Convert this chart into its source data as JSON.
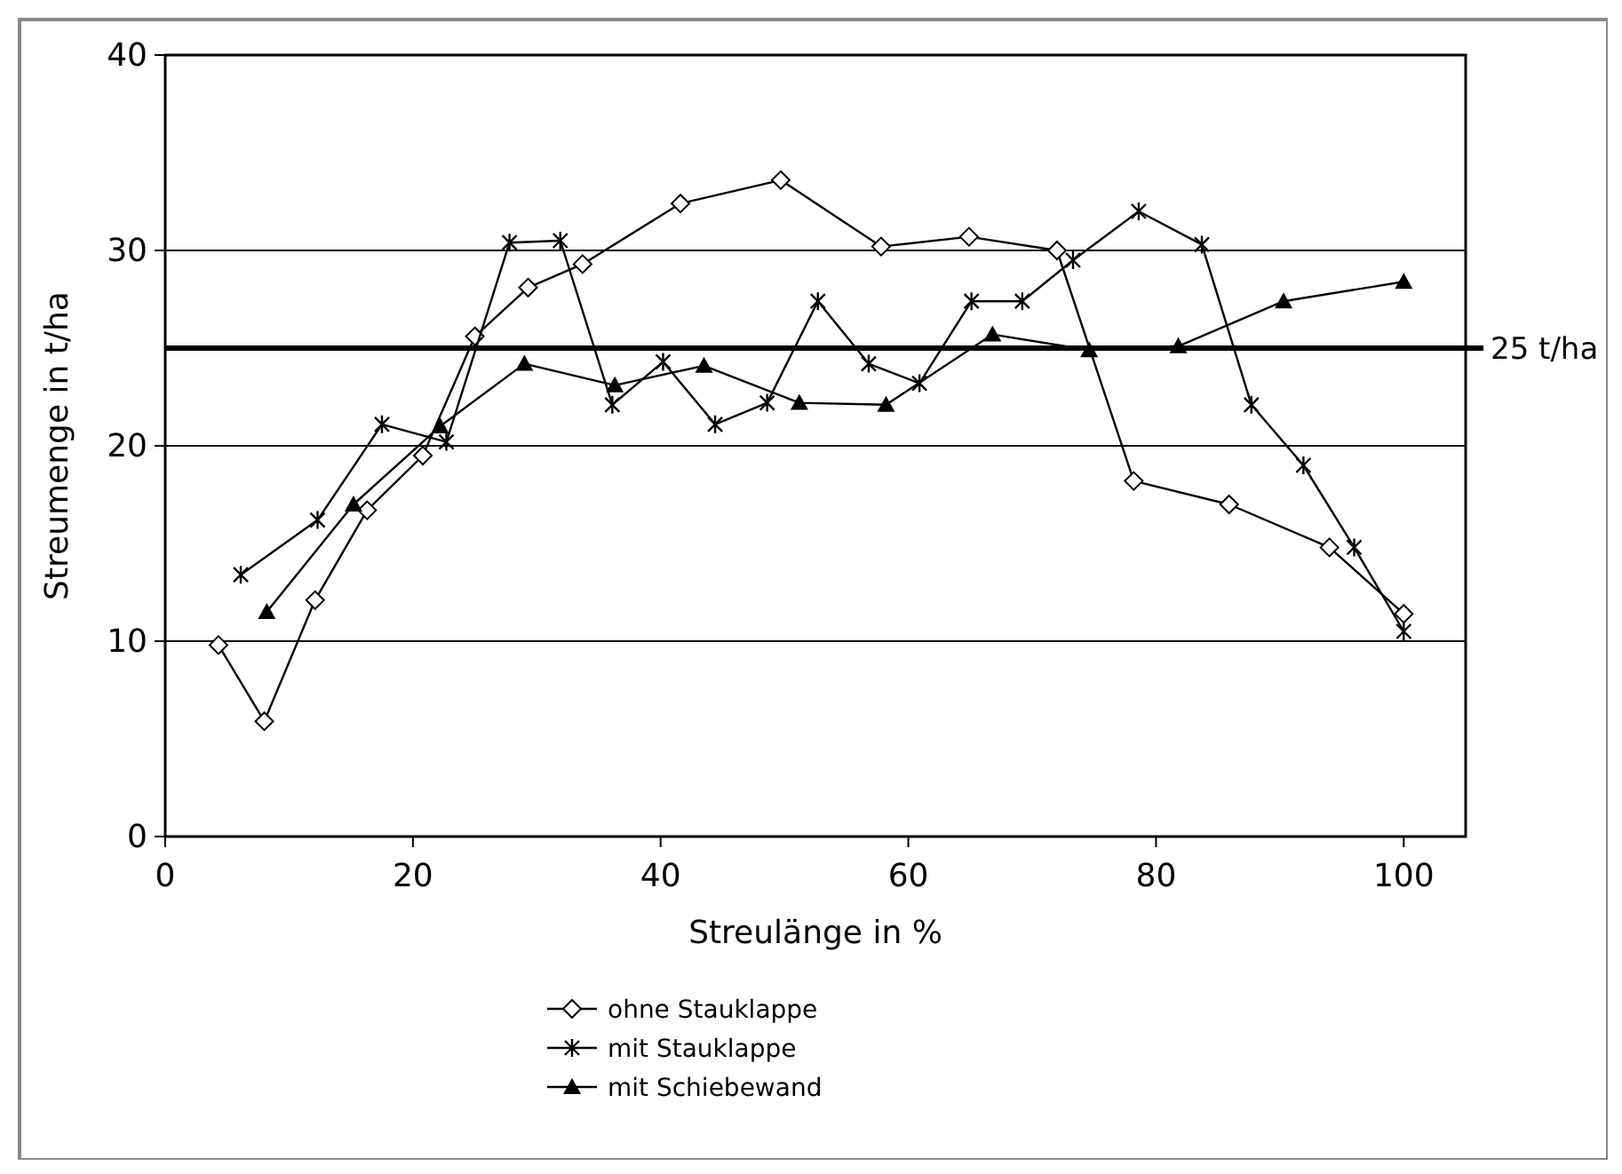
{
  "chart_data": {
    "type": "line",
    "xlabel": "Streulänge in %",
    "ylabel": "Streumenge in t/ha",
    "xlim": [
      0,
      105
    ],
    "xticks": [
      0,
      20,
      40,
      60,
      80,
      100
    ],
    "ylim": [
      0,
      40
    ],
    "yticks": [
      0,
      10,
      20,
      30,
      40
    ],
    "grid": "y",
    "legend": "bottom",
    "ref_lines": [
      {
        "axis": "y",
        "value": 25,
        "label": "25 t/ha"
      }
    ],
    "series": [
      {
        "name": "ohne Stauklappe",
        "color": "#000000",
        "marker": "diamond",
        "x": [
          4.3,
          8.0,
          12.1,
          16.3,
          20.8,
          25.0,
          29.3,
          33.7,
          41.6,
          49.7,
          57.8,
          64.9,
          72.0,
          78.2,
          85.9,
          94.0,
          100
        ],
        "values": [
          9.8,
          5.9,
          12.1,
          16.7,
          19.5,
          25.6,
          28.1,
          29.3,
          32.4,
          33.6,
          30.2,
          30.7,
          30.0,
          18.2,
          17.0,
          14.8,
          11.4
        ]
      },
      {
        "name": "mit Stauklappe",
        "color": "#000000",
        "marker": "cross",
        "x": [
          6.1,
          12.3,
          17.5,
          22.7,
          27.8,
          31.9,
          36.1,
          40.2,
          44.4,
          48.6,
          52.7,
          56.8,
          60.9,
          65.1,
          69.2,
          73.3,
          78.6,
          83.7,
          87.7,
          91.9,
          96.0,
          100
        ],
        "values": [
          13.4,
          16.2,
          21.1,
          20.2,
          30.4,
          30.5,
          22.1,
          24.3,
          21.1,
          22.2,
          27.4,
          24.2,
          23.2,
          27.4,
          27.4,
          29.5,
          32.0,
          30.3,
          22.1,
          19.0,
          14.8,
          10.5
        ]
      },
      {
        "name": "mit Schiebewand",
        "color": "#000000",
        "marker": "triangle",
        "x": [
          8.2,
          15.2,
          22.2,
          29.0,
          36.3,
          43.5,
          51.2,
          58.2,
          66.8,
          74.6,
          81.8,
          90.3,
          100
        ],
        "values": [
          11.5,
          17.0,
          21.0,
          24.2,
          23.1,
          24.1,
          22.2,
          22.1,
          25.7,
          24.9,
          25.1,
          27.4,
          28.4
        ]
      }
    ]
  }
}
